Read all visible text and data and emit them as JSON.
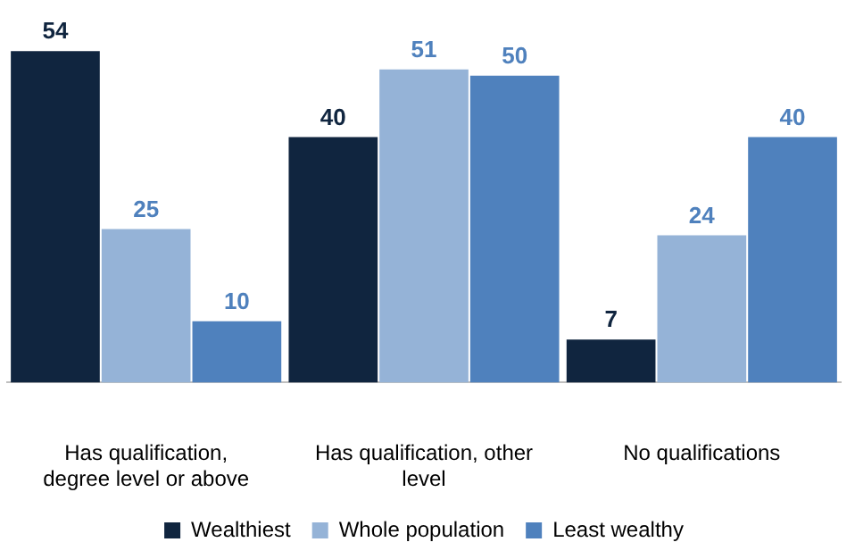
{
  "chart_data": {
    "type": "bar",
    "categories": [
      "Has qualification, degree level or above",
      "Has qualification, other level",
      "No qualifications"
    ],
    "series": [
      {
        "name": "Wealthiest",
        "color": "#10253f",
        "values": [
          54,
          40,
          7
        ]
      },
      {
        "name": "Whole population",
        "color": "#95b3d7",
        "values": [
          25,
          51,
          24
        ]
      },
      {
        "name": "Least wealthy",
        "color": "#4f81bd",
        "values": [
          10,
          50,
          40
        ]
      }
    ],
    "data_labels": true,
    "legend": "bottom",
    "grid": false
  }
}
